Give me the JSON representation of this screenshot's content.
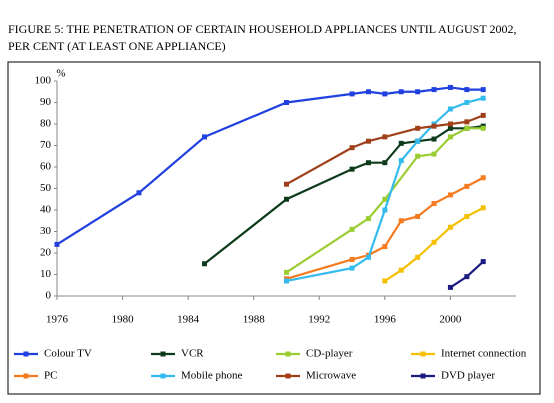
{
  "chart_data": {
    "type": "line",
    "title": "FIGURE 5: THE PENETRATION OF CERTAIN HOUSEHOLD APPLIANCES UNTIL AUGUST 2002,",
    "subtitle": "PER CENT (AT LEAST ONE APPLIANCE)",
    "y_unit": "%",
    "xlim": [
      1976,
      2004
    ],
    "xticks": [
      1976,
      1980,
      1984,
      1988,
      1992,
      1996,
      2000
    ],
    "ylim": [
      0,
      100
    ],
    "yticks": [
      0,
      10,
      20,
      30,
      40,
      50,
      60,
      70,
      80,
      90,
      100
    ],
    "series": [
      {
        "name": "Colour TV",
        "color": "#2040e0",
        "x": [
          1976,
          1981,
          1985,
          1990,
          1994,
          1995,
          1996,
          1997,
          1998,
          1999,
          2000,
          2001,
          2002
        ],
        "values": [
          24,
          48,
          74,
          90,
          94,
          95,
          94,
          95,
          95,
          96,
          97,
          96,
          96
        ]
      },
      {
        "name": "VCR",
        "color": "#0d3b1c",
        "x": [
          1985,
          1990,
          1994,
          1995,
          1996,
          1997,
          1998,
          1999,
          2000,
          2001,
          2002
        ],
        "values": [
          15,
          45,
          59,
          62,
          62,
          71,
          72,
          73,
          78,
          78,
          79
        ]
      },
      {
        "name": "CD-player",
        "color": "#9acd32",
        "x": [
          1990,
          1994,
          1995,
          1996,
          1998,
          1999,
          2000,
          2001,
          2002
        ],
        "values": [
          11,
          31,
          36,
          45,
          65,
          66,
          74,
          78,
          78
        ]
      },
      {
        "name": "Internet connection",
        "color": "#f5c000",
        "x": [
          1996,
          1997,
          1998,
          1999,
          2000,
          2001,
          2002
        ],
        "values": [
          7,
          12,
          18,
          25,
          32,
          37,
          41
        ]
      },
      {
        "name": "PC",
        "color": "#f47b20",
        "x": [
          1990,
          1994,
          1995,
          1996,
          1997,
          1998,
          1999,
          2000,
          2001,
          2002
        ],
        "values": [
          8,
          17,
          19,
          23,
          35,
          37,
          43,
          47,
          51,
          55
        ]
      },
      {
        "name": "Mobile phone",
        "color": "#33bbee",
        "x": [
          1990,
          1994,
          1995,
          1996,
          1997,
          1998,
          1999,
          2000,
          2001,
          2002
        ],
        "values": [
          7,
          13,
          18,
          40,
          63,
          72,
          80,
          87,
          90,
          92
        ]
      },
      {
        "name": "Microwave",
        "color": "#a0401a",
        "x": [
          1990,
          1994,
          1995,
          1996,
          1998,
          1999,
          2000,
          2001,
          2002
        ],
        "values": [
          52,
          69,
          72,
          74,
          78,
          79,
          80,
          81,
          84
        ]
      },
      {
        "name": "DVD player",
        "color": "#1a1a80",
        "x": [
          2000,
          2001,
          2002
        ],
        "values": [
          4,
          9,
          16
        ]
      }
    ]
  }
}
